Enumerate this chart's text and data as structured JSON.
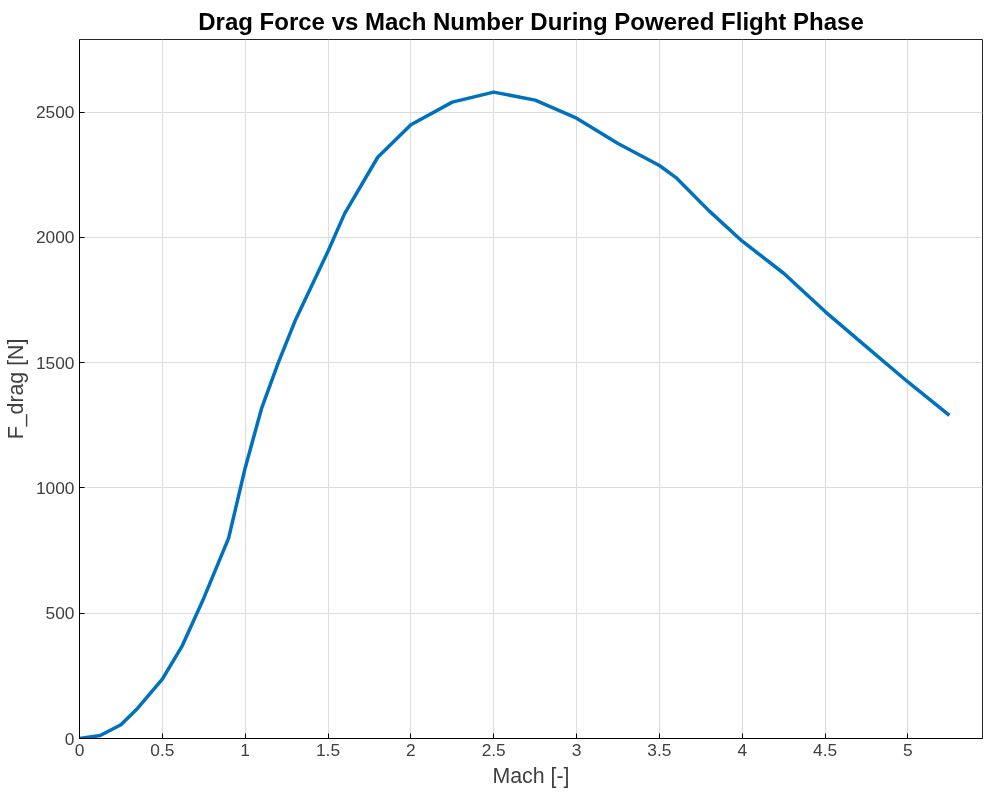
{
  "chart_data": {
    "type": "line",
    "title": "Drag Force vs Mach Number During Powered Flight Phase",
    "xlabel": "Mach [-]",
    "ylabel": "F_drag [N]",
    "x": [
      0,
      0.125,
      0.25,
      0.35,
      0.5,
      0.62,
      0.75,
      0.9,
      1.0,
      1.1,
      1.2,
      1.3,
      1.4,
      1.5,
      1.6,
      1.8,
      2.0,
      2.25,
      2.5,
      2.75,
      3.0,
      3.25,
      3.5,
      3.6,
      3.8,
      4.0,
      4.25,
      4.5,
      4.75,
      5.0,
      5.25
    ],
    "series": [
      {
        "color": "#0072bd",
        "values": [
          0,
          12,
          55,
          120,
          237,
          370,
          560,
          800,
          1080,
          1320,
          1500,
          1665,
          1805,
          1945,
          2095,
          2320,
          2450,
          2540,
          2580,
          2548,
          2476,
          2375,
          2287,
          2239,
          2106,
          1985,
          1857,
          1704,
          1563,
          1423,
          1290
        ]
      }
    ],
    "xlim": [
      0,
      5.45
    ],
    "ylim": [
      0,
      2790
    ],
    "xticks": [
      0,
      0.5,
      1,
      1.5,
      2,
      2.5,
      3,
      3.5,
      4,
      4.5,
      5
    ],
    "yticks": [
      0,
      500,
      1000,
      1500,
      2000,
      2500
    ],
    "grid": true,
    "marker": "none",
    "line_style": "solid"
  }
}
